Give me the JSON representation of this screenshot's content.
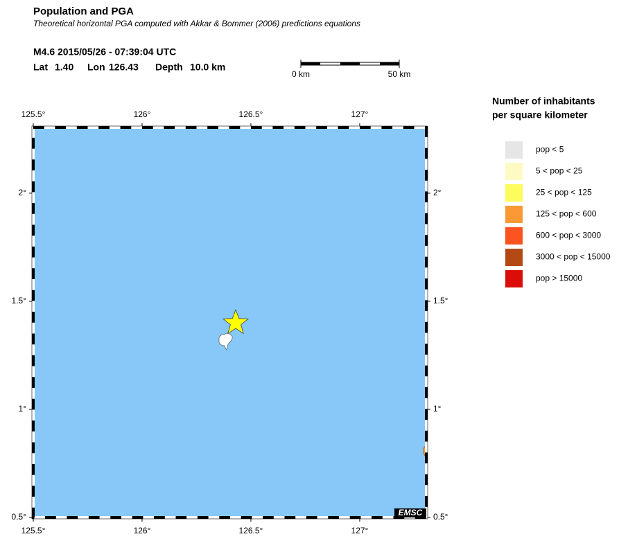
{
  "header": {
    "title": "Population and PGA",
    "subtitle": "Theoretical horizontal PGA computed with Akkar & Bommer (2006) predictions equations",
    "event": "M4.6  2015/05/26 - 07:39:04 UTC",
    "lat_label": "Lat",
    "lat": {
      "value": 1.4,
      "label": "1.40"
    },
    "lon_label": "Lon",
    "lon": 126.43,
    "depth_label": "Depth",
    "depth": "10.0 km"
  },
  "scale_bar": {
    "start": "0 km",
    "end": "50 km"
  },
  "map": {
    "xlim": [
      125.5,
      127.306
    ],
    "ylim": [
      0.5,
      2.304
    ],
    "xticks": [
      {
        "value": 125.5,
        "label": "125.5°"
      },
      {
        "value": 126,
        "label": "126°"
      },
      {
        "value": 126.5,
        "label": "126.5°"
      },
      {
        "value": 127,
        "label": "127°"
      }
    ],
    "yticks": [
      {
        "value": 0.5,
        "label": "0.5°"
      },
      {
        "value": 1,
        "label": "1°"
      },
      {
        "value": 1.5,
        "label": "1.5°"
      },
      {
        "value": 2,
        "label": "2°"
      }
    ],
    "sea_color": "#87c8f8",
    "epicenter_color": "#ffff00",
    "logo": "EMSC"
  },
  "legend": {
    "title": [
      "Number of inhabitants",
      "per square kilometer"
    ],
    "items": [
      {
        "label": "pop < 5",
        "color": "#e6e6e6"
      },
      {
        "label": "5 < pop < 25",
        "color": "#fdfac4"
      },
      {
        "label": "25 < pop < 125",
        "color": "#fcfc5c"
      },
      {
        "label": "125 < pop < 600",
        "color": "#fb9934"
      },
      {
        "label": "600 < pop < 3000",
        "color": "#fc5420"
      },
      {
        "label": "3000 < pop < 15000",
        "color": "#b34a16"
      },
      {
        "label": "pop > 15000",
        "color": "#da0d08"
      }
    ]
  }
}
